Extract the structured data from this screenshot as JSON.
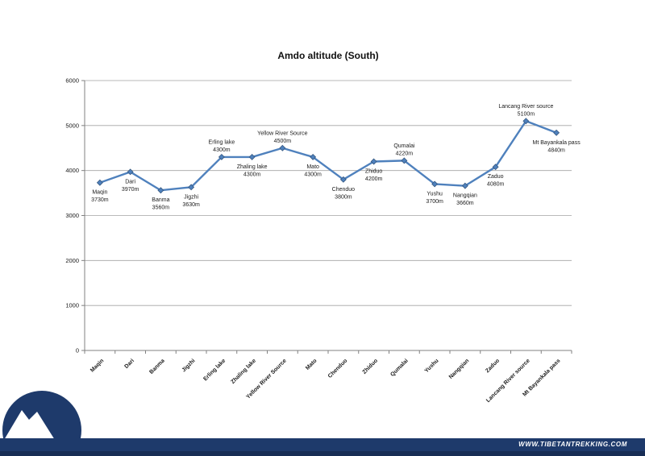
{
  "title": "Amdo altitude (South)",
  "chart_data": {
    "type": "line",
    "title": "Amdo altitude (South)",
    "categories": [
      "Maqin",
      "Dari",
      "Banma",
      "Jigzhi",
      "Erling lake",
      "Zhaling lake",
      "Yellow River Source",
      "Mato",
      "Chenduo",
      "Zhiduo",
      "Qumalai",
      "Yushu",
      "Nangqian",
      "Zaduo",
      "Lancang River source",
      "Mt Bayankala pass"
    ],
    "values": [
      3730,
      3970,
      3560,
      3630,
      4300,
      4300,
      4500,
      4300,
      3800,
      4200,
      4220,
      3700,
      3660,
      4080,
      5100,
      4840
    ],
    "unit": "m",
    "label_placements": [
      "below",
      "below",
      "below",
      "below",
      "above",
      "below",
      "above",
      "below",
      "below",
      "below",
      "above",
      "below",
      "below",
      "below",
      "above",
      "below"
    ],
    "xlabel": "",
    "ylabel": "",
    "ylim": [
      0,
      6000
    ],
    "yticks": [
      0,
      1000,
      2000,
      3000,
      4000,
      5000,
      6000
    ],
    "grid": true,
    "legend": "none",
    "marker": "diamond"
  },
  "footer": {
    "website": "WWW.TIBETANTREKKING.COM"
  },
  "icons": {
    "logo": "mountain-logo"
  },
  "colors": {
    "navy": "#1e3a6b",
    "navy_dark": "#172d55",
    "line": "#4f81bd",
    "marker_edge": "#35577f",
    "grid": "#a3a3a3",
    "axis": "#808080",
    "text": "#1a1a1a"
  }
}
